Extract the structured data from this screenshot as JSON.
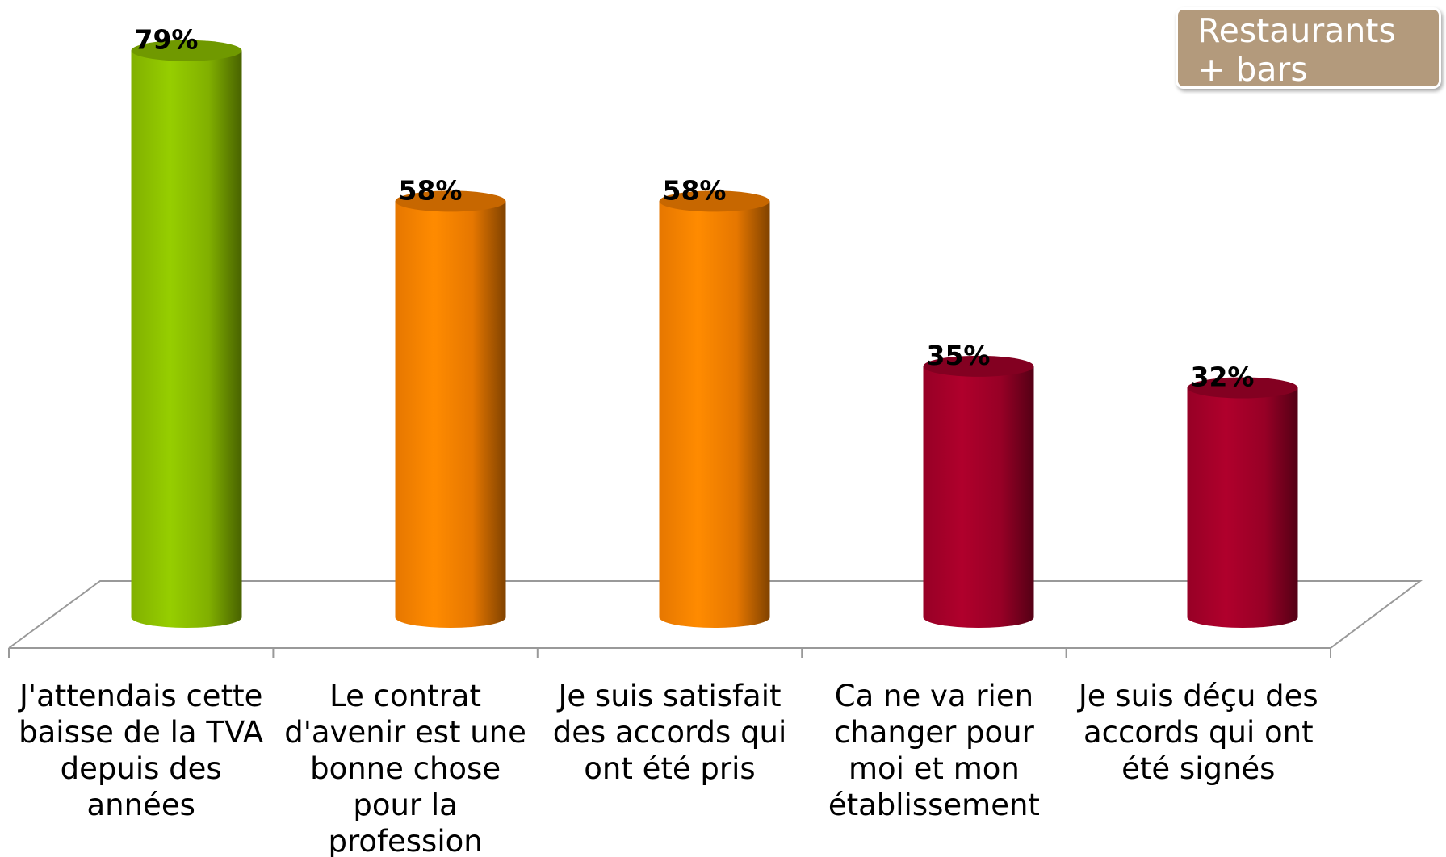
{
  "chart_data": {
    "type": "bar3d",
    "annotation": "Restaurants + bars",
    "categories": [
      "J'attendais cette baisse de la TVA depuis des années",
      "Le contrat d'avenir est une bonne chose pour la profession",
      "Je suis satisfait des accords qui ont été pris",
      "Ca ne va rien changer pour moi et mon établissement",
      "Je suis déçu des accords qui ont été signés"
    ],
    "values": [
      79,
      58,
      58,
      35,
      32
    ],
    "value_labels": [
      "79%",
      "58%",
      "58%",
      "35%",
      "32%"
    ],
    "colors": [
      "#8fc400",
      "#ff8400",
      "#ff8400",
      "#a8002a",
      "#a8002a"
    ]
  }
}
